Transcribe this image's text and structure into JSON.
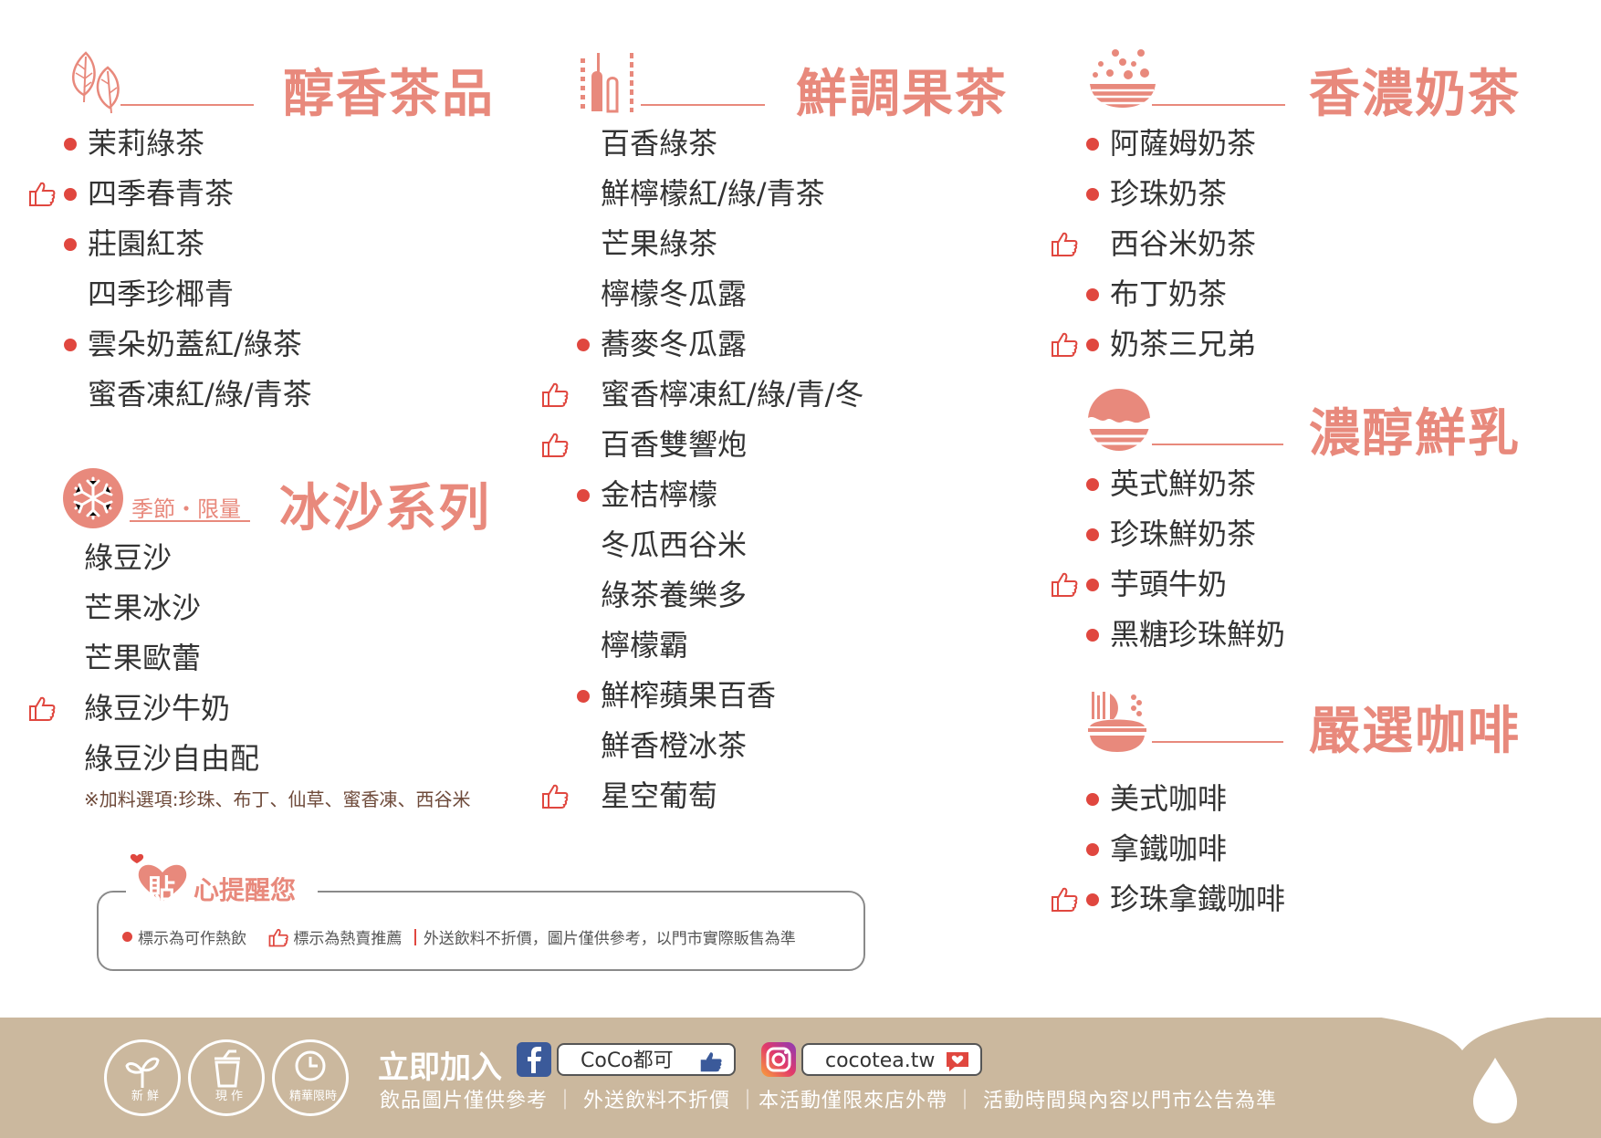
{
  "sections": {
    "tea": {
      "title": "醇香茶品",
      "items": [
        {
          "name": "茉莉綠茶",
          "hot": true,
          "recommended": false
        },
        {
          "name": "四季春青茶",
          "hot": true,
          "recommended": true
        },
        {
          "name": "莊園紅茶",
          "hot": true,
          "recommended": false
        },
        {
          "name": "四季珍椰青",
          "hot": false,
          "recommended": false
        },
        {
          "name": "雲朵奶蓋紅/綠茶",
          "hot": true,
          "recommended": false
        },
        {
          "name": "蜜香凍紅/綠/青茶",
          "hot": false,
          "recommended": false
        }
      ]
    },
    "smoothie": {
      "title": "冰沙系列",
      "badge": "季節・限量",
      "items": [
        {
          "name": "綠豆沙",
          "hot": false,
          "recommended": false
        },
        {
          "name": "芒果冰沙",
          "hot": false,
          "recommended": false
        },
        {
          "name": "芒果歐蕾",
          "hot": false,
          "recommended": false
        },
        {
          "name": "綠豆沙牛奶",
          "hot": false,
          "recommended": true
        },
        {
          "name": "綠豆沙自由配",
          "hot": false,
          "recommended": false
        }
      ],
      "note": "※加料選項:珍珠、布丁、仙草、蜜香凍、西谷米"
    },
    "fruit": {
      "title": "鮮調果茶",
      "items": [
        {
          "name": "百香綠茶",
          "hot": false,
          "recommended": false
        },
        {
          "name": "鮮檸檬紅/綠/青茶",
          "hot": false,
          "recommended": false
        },
        {
          "name": "芒果綠茶",
          "hot": false,
          "recommended": false
        },
        {
          "name": "檸檬冬瓜露",
          "hot": false,
          "recommended": false
        },
        {
          "name": "蕎麥冬瓜露",
          "hot": true,
          "recommended": false
        },
        {
          "name": "蜜香檸凍紅/綠/青/冬",
          "hot": false,
          "recommended": true
        },
        {
          "name": "百香雙響炮",
          "hot": false,
          "recommended": true
        },
        {
          "name": "金桔檸檬",
          "hot": true,
          "recommended": false
        },
        {
          "name": "冬瓜西谷米",
          "hot": false,
          "recommended": false
        },
        {
          "name": "綠茶養樂多",
          "hot": false,
          "recommended": false
        },
        {
          "name": "檸檬霸",
          "hot": false,
          "recommended": false
        },
        {
          "name": "鮮榨蘋果百香",
          "hot": true,
          "recommended": false
        },
        {
          "name": "鮮香橙冰茶",
          "hot": false,
          "recommended": false
        },
        {
          "name": "星空葡萄",
          "hot": false,
          "recommended": true
        }
      ]
    },
    "milk_tea": {
      "title": "香濃奶茶",
      "items": [
        {
          "name": "阿薩姆奶茶",
          "hot": true,
          "recommended": false
        },
        {
          "name": "珍珠奶茶",
          "hot": true,
          "recommended": false
        },
        {
          "name": "西谷米奶茶",
          "hot": false,
          "recommended": true
        },
        {
          "name": "布丁奶茶",
          "hot": true,
          "recommended": false
        },
        {
          "name": "奶茶三兄弟",
          "hot": true,
          "recommended": true
        }
      ]
    },
    "fresh_milk": {
      "title": "濃醇鮮乳",
      "items": [
        {
          "name": "英式鮮奶茶",
          "hot": true,
          "recommended": false
        },
        {
          "name": "珍珠鮮奶茶",
          "hot": true,
          "recommended": false
        },
        {
          "name": "芋頭牛奶",
          "hot": true,
          "recommended": true
        },
        {
          "name": "黑糖珍珠鮮奶",
          "hot": true,
          "recommended": false
        }
      ]
    },
    "coffee": {
      "title": "嚴選咖啡",
      "items": [
        {
          "name": "美式咖啡",
          "hot": true,
          "recommended": false
        },
        {
          "name": "拿鐵咖啡",
          "hot": true,
          "recommended": false
        },
        {
          "name": "珍珠拿鐵咖啡",
          "hot": true,
          "recommended": true
        }
      ]
    }
  },
  "reminder": {
    "title_char": "貼",
    "title_rest": "心提醒您",
    "legend_hot": "標示為可作熱飲",
    "legend_recommended": "標示為熱賣推薦",
    "disclaimer": "外送飲料不折價，圖片僅供參考，以門市實際販售為準"
  },
  "footer": {
    "badges": [
      "新 鮮",
      "現 作",
      "精華限時"
    ],
    "join_label": "立即加入",
    "facebook_name": "CoCo都可",
    "instagram_name": "cocotea.tw",
    "note": "飲品圖片僅供參考 ｜ 外送飲料不折價 ｜本活動僅限來店外帶 ｜ 活動時間與內容以門市公告為準"
  },
  "colors": {
    "accent": "#e8897c",
    "hot_dot": "#e0473f",
    "footer_bg": "#cbb89e"
  },
  "icons": [
    "leaf-icon",
    "fruit-tea-icon",
    "milk-tea-icon",
    "snowflake-icon",
    "fresh-milk-icon",
    "coffee-icon",
    "thumbs-up-icon",
    "heart-icon",
    "facebook-icon",
    "instagram-icon",
    "drop-icon"
  ]
}
